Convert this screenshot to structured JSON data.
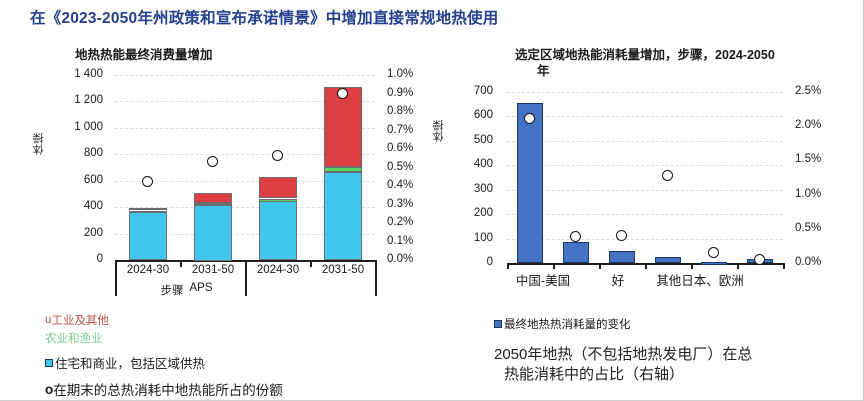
{
  "title": "在《2023-2050年州政策和宣布承诺情景》中增加直接常规地热使用",
  "title_color": "#24408E",
  "chart_data": [
    {
      "type": "bar",
      "variant": "stacked-columns-with-share-dots",
      "title": "地热热能最终消费量增加",
      "y_axis_label": "体操",
      "left_axis": {
        "min": 0,
        "max": 1400,
        "step": 200,
        "tick_labels": [
          "0",
          "200",
          "400",
          "600",
          "800",
          "1 000",
          "1 200",
          "1 400"
        ]
      },
      "right_axis": {
        "min": 0,
        "max": 1.0,
        "step": 0.1,
        "tick_labels": [
          "0.0%",
          "0.1%",
          "0.2%",
          "0.3%",
          "0.4%",
          "0.5%",
          "0.6%",
          "0.7%",
          "0.8%",
          "0.9%",
          "1.0%"
        ]
      },
      "categories": [
        "2024-30",
        "2031-50",
        "2024-30",
        "2031-50"
      ],
      "group_labels": [
        "步骤",
        "APS"
      ],
      "series": [
        {
          "name": "住宅和商业，包括区域供热",
          "color": "#41C6F0",
          "values": [
            360,
            420,
            445,
            665
          ]
        },
        {
          "name": "农业和渔业",
          "color": "#57D45B",
          "values": [
            12,
            15,
            20,
            40
          ]
        },
        {
          "name": "工业及其他",
          "color": "#DC3E42",
          "values": [
            18,
            75,
            160,
            605
          ]
        }
      ],
      "dots": {
        "name": "在期末的总热消耗中地热能所占的份额",
        "values_pct": [
          0.42,
          0.53,
          0.56,
          0.9
        ]
      },
      "grid": true,
      "legend_position": "below-left"
    },
    {
      "type": "bar",
      "variant": "columns-with-share-dots",
      "title_line1": "选定区域地热能消耗量增加，步骤，2024-2050",
      "title_line2": "年",
      "y_axis_label": "体操",
      "left_axis": {
        "min": 0,
        "max": 700,
        "step": 100,
        "tick_labels": [
          "0",
          "100",
          "200",
          "300",
          "400",
          "500",
          "600",
          "700"
        ]
      },
      "right_axis": {
        "min": 0,
        "max": 2.5,
        "step": 0.5,
        "tick_labels": [
          "0.0%",
          "0.5%",
          "1.0%",
          "1.5%",
          "2.0%",
          "2.5%"
        ]
      },
      "bar_color": "#4472C4",
      "bar_values": [
        655,
        85,
        50,
        25,
        6,
        18
      ],
      "dots_pct": [
        2.1,
        0.38,
        0.4,
        1.27,
        0.15,
        0.05
      ],
      "x_tick_labels": [
        {
          "text": "中国-美国",
          "slot_center": 0.28
        },
        {
          "text": "好",
          "slot_center": 1.91
        },
        {
          "text": "其他日本、欧洲",
          "slot_center": 3.7
        }
      ],
      "grid": true
    }
  ],
  "legend_left": {
    "items": [
      {
        "marker": "u",
        "label": "工业及其他",
        "color": "#C0504D"
      },
      {
        "marker": "",
        "label": "农业和渔业",
        "color": "#7DC98F"
      },
      {
        "marker": "square",
        "label": "住宅和商业，包括区域供热",
        "marker_color": "#41C6F0",
        "color": "#1a1a1a"
      },
      {
        "marker": "o",
        "label": "在期末的总热消耗中地热能所占的份额",
        "color": "#1a1a1a"
      }
    ]
  },
  "legend_right": {
    "series_marker_color": "#4472C4",
    "series_label": "最终地热热消耗量的变化",
    "note_line1": "2050年地热（不包括地热发电厂）在总",
    "note_line2": "热能消耗中的占比（右轴）"
  }
}
